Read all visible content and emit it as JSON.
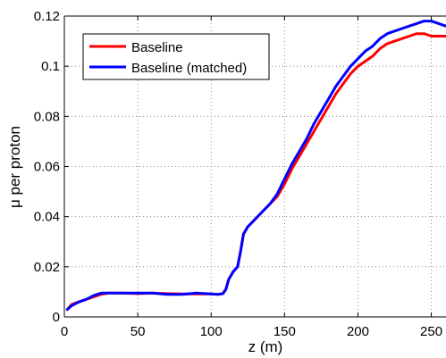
{
  "chart_data": {
    "type": "line",
    "title": "",
    "xlabel": "z (m)",
    "ylabel": "μ per proton",
    "xlim": [
      0,
      260
    ],
    "ylim": [
      0,
      0.12
    ],
    "xticks": [
      0,
      50,
      100,
      150,
      200,
      250
    ],
    "xtick_labels": [
      "0",
      "50",
      "100",
      "150",
      "200",
      "250"
    ],
    "yticks": [
      0,
      0.02,
      0.04,
      0.06,
      0.08,
      0.1,
      0.12
    ],
    "ytick_labels": [
      "0",
      "0.02",
      "0.04",
      "0.06",
      "0.08",
      "0.1",
      "0.12"
    ],
    "grid": true,
    "legend_position": "top-left",
    "series": [
      {
        "name": "Baseline",
        "color": "#ff0000",
        "x": [
          2,
          5,
          10,
          15,
          20,
          25,
          30,
          40,
          50,
          60,
          70,
          80,
          90,
          100,
          105,
          108,
          110,
          112,
          115,
          118,
          120,
          122,
          125,
          130,
          135,
          140,
          145,
          150,
          155,
          160,
          165,
          170,
          175,
          180,
          185,
          190,
          195,
          200,
          205,
          210,
          215,
          220,
          225,
          230,
          235,
          240,
          245,
          250,
          255,
          260
        ],
        "y": [
          0.003,
          0.005,
          0.006,
          0.007,
          0.008,
          0.009,
          0.0095,
          0.0095,
          0.0093,
          0.0095,
          0.0093,
          0.0092,
          0.0092,
          0.0092,
          0.009,
          0.0093,
          0.011,
          0.015,
          0.018,
          0.02,
          0.026,
          0.033,
          0.036,
          0.039,
          0.042,
          0.045,
          0.048,
          0.053,
          0.059,
          0.064,
          0.069,
          0.074,
          0.079,
          0.084,
          0.089,
          0.093,
          0.097,
          0.1,
          0.102,
          0.104,
          0.107,
          0.109,
          0.11,
          0.111,
          0.112,
          0.113,
          0.113,
          0.112,
          0.112,
          0.112
        ]
      },
      {
        "name": "Baseline (matched)",
        "color": "#0000ff",
        "x": [
          2,
          5,
          10,
          15,
          20,
          25,
          30,
          40,
          50,
          60,
          70,
          80,
          90,
          100,
          105,
          108,
          110,
          112,
          115,
          118,
          120,
          122,
          125,
          130,
          135,
          140,
          145,
          150,
          155,
          160,
          165,
          170,
          175,
          180,
          185,
          190,
          195,
          200,
          205,
          210,
          215,
          220,
          225,
          230,
          235,
          240,
          245,
          250,
          255,
          260
        ],
        "y": [
          0.003,
          0.0045,
          0.006,
          0.007,
          0.0085,
          0.0095,
          0.0095,
          0.0095,
          0.0095,
          0.0095,
          0.009,
          0.009,
          0.0095,
          0.0092,
          0.009,
          0.0093,
          0.011,
          0.015,
          0.018,
          0.02,
          0.026,
          0.033,
          0.036,
          0.039,
          0.042,
          0.045,
          0.049,
          0.055,
          0.061,
          0.066,
          0.071,
          0.077,
          0.082,
          0.087,
          0.092,
          0.096,
          0.1,
          0.103,
          0.106,
          0.108,
          0.111,
          0.113,
          0.114,
          0.115,
          0.116,
          0.117,
          0.118,
          0.118,
          0.117,
          0.116
        ]
      }
    ]
  }
}
